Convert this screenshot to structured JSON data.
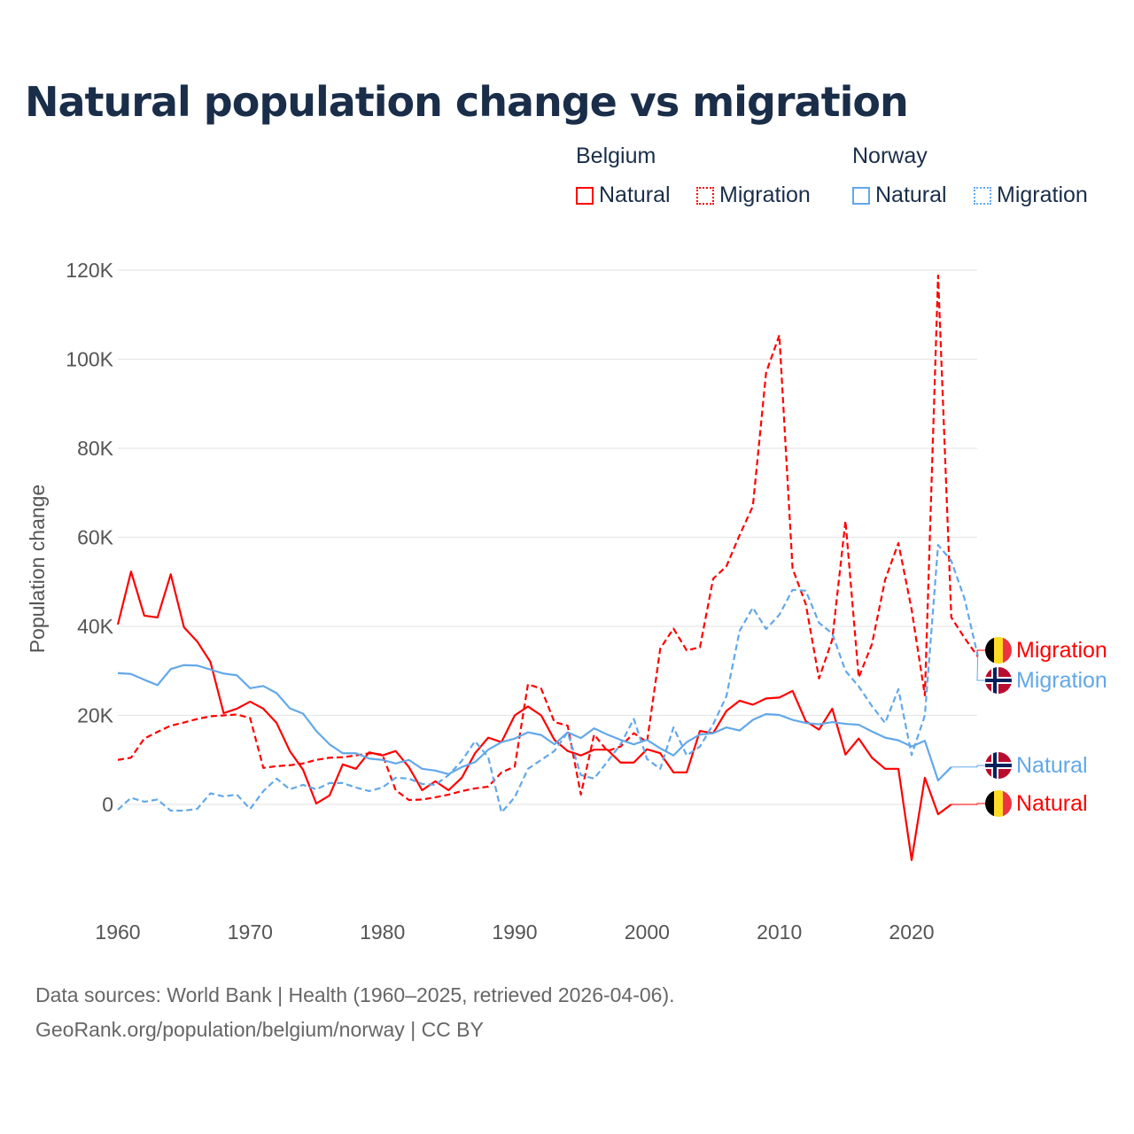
{
  "header": {
    "title": "Natural population change vs migration"
  },
  "legend": {
    "groups": [
      {
        "name": "Belgium",
        "items": [
          "Natural",
          "Migration"
        ],
        "color": "#ff0000"
      },
      {
        "name": "Norway",
        "items": [
          "Natural",
          "Migration"
        ],
        "color": "#62a8ea"
      }
    ]
  },
  "footer": {
    "line1": "Data sources: World Bank | Health (1960–2025, retrieved 2026-04-06).",
    "line2": "GeoRank.org/population/belgium/norway | CC BY"
  },
  "chart_data": {
    "type": "line",
    "title": "Natural population change vs migration",
    "xlabel": "",
    "ylabel": "Population change",
    "xlim": [
      1960,
      2025
    ],
    "ylim": [
      -20000,
      120000
    ],
    "x_ticks": [
      "1960",
      "1970",
      "1980",
      "1990",
      "2000",
      "2010",
      "2020"
    ],
    "x_tick_values": [
      1960,
      1970,
      1980,
      1990,
      2000,
      2010,
      2020
    ],
    "y_ticks": [
      "0",
      "20K",
      "40K",
      "60K",
      "80K",
      "100K",
      "120K"
    ],
    "y_tick_values": [
      0,
      20000,
      40000,
      60000,
      80000,
      100000,
      120000
    ],
    "grid": true,
    "x_start": 1960,
    "series": [
      {
        "name": "Belgium Natural",
        "country": "Belgium",
        "kind": "Natural",
        "color": "#ff0000",
        "dashed": false,
        "end_label": "Natural",
        "values": [
          40.4,
          52.3,
          42.4,
          42,
          51.7,
          39.8,
          36.6,
          32,
          20.5,
          21.5,
          23.1,
          21.5,
          18.3,
          12,
          7.8,
          0.2,
          2,
          9,
          8,
          11.7,
          11,
          12,
          8.4,
          3.2,
          5.2,
          3.2,
          6,
          11.5,
          15,
          14,
          20,
          22,
          20,
          14.5,
          12,
          11,
          12.3,
          12.3,
          9.4,
          9.4,
          12.4,
          11.5,
          7.2,
          7.2,
          16.5,
          16,
          21,
          23.3,
          22.4,
          23.8,
          24,
          25.5,
          18.7,
          16.8,
          21.5,
          11.2,
          14.8,
          10.5,
          8,
          8,
          -12.5,
          6,
          -2.2,
          0
        ]
      },
      {
        "name": "Belgium Migration",
        "country": "Belgium",
        "kind": "Migration",
        "color": "#ff0000",
        "dashed": true,
        "end_label": "Migration",
        "values": [
          10,
          10.5,
          14.8,
          16.3,
          17.7,
          18.4,
          19.2,
          19.8,
          20,
          20.2,
          19.4,
          8.2,
          8.6,
          8.8,
          9.2,
          10,
          10.5,
          10.6,
          11,
          11.5,
          11.2,
          3.2,
          1,
          1.1,
          1.6,
          2.2,
          3,
          3.6,
          4,
          7.2,
          8.5,
          27,
          26,
          18.5,
          17.7,
          2.2,
          15.7,
          12,
          13,
          16,
          14,
          35,
          39.5,
          34.6,
          35.3,
          50.7,
          53.5,
          60.5,
          67,
          97,
          105.4,
          53,
          45,
          28.3,
          37,
          63.7,
          28.5,
          36,
          50.5,
          58.7,
          43.8,
          24.5,
          118.8,
          42,
          37.4,
          33.2
        ]
      },
      {
        "name": "Norway Natural",
        "country": "Norway",
        "kind": "Natural",
        "color": "#62a8ea",
        "dashed": false,
        "end_label": "Natural",
        "values": [
          29.5,
          29.3,
          28,
          26.8,
          30.4,
          31.3,
          31.2,
          30.3,
          29.4,
          29,
          26.1,
          26.6,
          25,
          21.6,
          20.4,
          16.5,
          13.5,
          11.5,
          11.5,
          10.3,
          10,
          9.2,
          10,
          8,
          7.6,
          6.8,
          8.4,
          9.5,
          12.3,
          14,
          14.8,
          16.2,
          15.6,
          13.5,
          16.2,
          14.9,
          17.1,
          15.7,
          14.5,
          13.5,
          14.5,
          12.6,
          11,
          14,
          15.7,
          16,
          17.3,
          16.6,
          19,
          20.3,
          20.1,
          19,
          18.3,
          18,
          18.5,
          18.1,
          17.9,
          16.4,
          15,
          14.4,
          13,
          14.3,
          5.4,
          8.4
        ]
      },
      {
        "name": "Norway Migration",
        "country": "Norway",
        "kind": "Migration",
        "color": "#62a8ea",
        "dashed": true,
        "end_label": "Migration",
        "values": [
          -1.2,
          1.5,
          0.6,
          1.1,
          -1.4,
          -1.4,
          -1,
          2.5,
          1.8,
          2.2,
          -1,
          3,
          5.8,
          3.4,
          4.4,
          3.4,
          4.8,
          4.8,
          3.8,
          3,
          3.8,
          6,
          5.8,
          4.6,
          4.4,
          6.6,
          9.8,
          14.2,
          10.6,
          -1.8,
          1.6,
          8,
          10,
          12,
          16.2,
          6.6,
          5.8,
          9.6,
          13.5,
          19.2,
          10.2,
          8,
          17.3,
          11,
          13,
          18,
          24.3,
          39,
          44.2,
          39.4,
          42.6,
          48.2,
          48,
          40.8,
          38.4,
          30,
          26.5,
          22.1,
          18.3,
          25.9,
          11.1,
          20,
          58.3,
          54.7,
          46.2,
          33.4
        ]
      }
    ],
    "value_unit": "thousands"
  }
}
